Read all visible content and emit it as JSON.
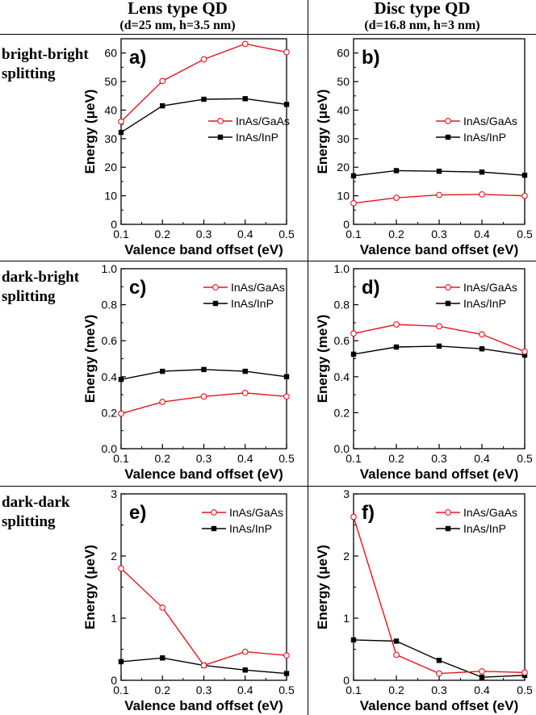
{
  "columns": [
    {
      "title": "Lens type QD",
      "subtitle": "(d=25 nm, h=3.5 nm)"
    },
    {
      "title": "Disc type QD",
      "subtitle": "(d=16.8 nm, h=3 nm)"
    }
  ],
  "rows": [
    {
      "label_line1": "bright-bright",
      "label_line2": "splitting"
    },
    {
      "label_line1": "dark-bright",
      "label_line2": "splitting"
    },
    {
      "label_line1": "dark-dark",
      "label_line2": "splitting"
    }
  ],
  "colors": {
    "InAs/GaAs": "#e8141b",
    "InAs/InP": "#000000"
  },
  "chart_data": [
    {
      "type": "line",
      "panel": "a)",
      "xlabel": "Valence band offset (eV)",
      "ylabel": "Energy (μeV)",
      "x": [
        0.1,
        0.2,
        0.3,
        0.4,
        0.5
      ],
      "xlim": [
        0.1,
        0.5
      ],
      "ylim": [
        0,
        65
      ],
      "yticks": [
        0,
        10,
        20,
        30,
        40,
        50,
        60
      ],
      "ytick_labels": [
        "0",
        "10",
        "20",
        "30",
        "40",
        "50",
        "60"
      ],
      "xtick_labels": [
        "0.1",
        "0.2",
        "0.3",
        "0.4",
        "0.5"
      ],
      "series": [
        {
          "name": "InAs/GaAs",
          "values": [
            36,
            50.2,
            57.8,
            63.2,
            60.3
          ],
          "marker": "open-circle"
        },
        {
          "name": "InAs/InP",
          "values": [
            32.2,
            41.5,
            43.8,
            44,
            42
          ],
          "marker": "filled-square"
        }
      ]
    },
    {
      "type": "line",
      "panel": "b)",
      "xlabel": "Valence band offset (eV)",
      "ylabel": "Energy (μeV)",
      "x": [
        0.1,
        0.2,
        0.3,
        0.4,
        0.5
      ],
      "xlim": [
        0.1,
        0.5
      ],
      "ylim": [
        0,
        65
      ],
      "yticks": [
        0,
        10,
        20,
        30,
        40,
        50,
        60
      ],
      "ytick_labels": [
        "0",
        "10",
        "20",
        "30",
        "40",
        "50",
        "60"
      ],
      "xtick_labels": [
        "0.1",
        "0.2",
        "0.3",
        "0.4",
        "0.5"
      ],
      "series": [
        {
          "name": "InAs/GaAs",
          "values": [
            7.4,
            9.3,
            10.3,
            10.5,
            10
          ],
          "marker": "open-circle"
        },
        {
          "name": "InAs/InP",
          "values": [
            17,
            18.8,
            18.6,
            18.3,
            17.2
          ],
          "marker": "filled-square"
        }
      ]
    },
    {
      "type": "line",
      "panel": "c)",
      "xlabel": "Valence band offset (eV)",
      "ylabel": "Energy (meV)",
      "x": [
        0.1,
        0.2,
        0.3,
        0.4,
        0.5
      ],
      "xlim": [
        0.1,
        0.5
      ],
      "ylim": [
        0,
        1.0
      ],
      "yticks": [
        0,
        0.2,
        0.4,
        0.6,
        0.8,
        1.0
      ],
      "ytick_labels": [
        "0.0",
        "0.2",
        "0.4",
        "0.6",
        "0.8",
        "1.0"
      ],
      "xtick_labels": [
        "0.1",
        "0.2",
        "0.3",
        "0.4",
        "0.5"
      ],
      "series": [
        {
          "name": "InAs/GaAs",
          "values": [
            0.195,
            0.26,
            0.29,
            0.31,
            0.29
          ],
          "marker": "open-circle"
        },
        {
          "name": "InAs/InP",
          "values": [
            0.385,
            0.43,
            0.44,
            0.43,
            0.4
          ],
          "marker": "filled-square"
        }
      ]
    },
    {
      "type": "line",
      "panel": "d)",
      "xlabel": "Valence band offset (eV)",
      "ylabel": "Energy (meV)",
      "x": [
        0.1,
        0.2,
        0.3,
        0.4,
        0.5
      ],
      "xlim": [
        0.1,
        0.5
      ],
      "ylim": [
        0,
        1.0
      ],
      "yticks": [
        0,
        0.2,
        0.4,
        0.6,
        0.8,
        1.0
      ],
      "ytick_labels": [
        "0.0",
        "0.2",
        "0.4",
        "0.6",
        "0.8",
        "1.0"
      ],
      "xtick_labels": [
        "0.1",
        "0.2",
        "0.3",
        "0.4",
        "0.5"
      ],
      "series": [
        {
          "name": "InAs/GaAs",
          "values": [
            0.64,
            0.69,
            0.68,
            0.635,
            0.54
          ],
          "marker": "open-circle"
        },
        {
          "name": "InAs/InP",
          "values": [
            0.525,
            0.565,
            0.57,
            0.555,
            0.52
          ],
          "marker": "filled-square"
        }
      ]
    },
    {
      "type": "line",
      "panel": "e)",
      "xlabel": "Valence band offset (eV)",
      "ylabel": "Energy (μeV)",
      "x": [
        0.1,
        0.2,
        0.3,
        0.4,
        0.5
      ],
      "xlim": [
        0.1,
        0.5
      ],
      "ylim": [
        0,
        3
      ],
      "yticks": [
        0,
        1,
        2,
        3
      ],
      "ytick_labels": [
        "0",
        "1",
        "2",
        "3"
      ],
      "xtick_labels": [
        "0.1",
        "0.2",
        "0.3",
        "0.4",
        "0.5"
      ],
      "series": [
        {
          "name": "InAs/GaAs",
          "values": [
            1.8,
            1.17,
            0.24,
            0.46,
            0.4
          ],
          "marker": "open-circle"
        },
        {
          "name": "InAs/InP",
          "values": [
            0.3,
            0.36,
            0.24,
            0.165,
            0.11
          ],
          "marker": "filled-square"
        }
      ]
    },
    {
      "type": "line",
      "panel": "f)",
      "xlabel": "Valence band offset (eV)",
      "ylabel": "Energy (μeV)",
      "x": [
        0.1,
        0.2,
        0.3,
        0.4,
        0.5
      ],
      "xlim": [
        0.1,
        0.5
      ],
      "ylim": [
        0,
        3
      ],
      "yticks": [
        0,
        1,
        2,
        3
      ],
      "ytick_labels": [
        "0",
        "1",
        "2",
        "3"
      ],
      "xtick_labels": [
        "0.1",
        "0.2",
        "0.3",
        "0.4",
        "0.5"
      ],
      "series": [
        {
          "name": "InAs/GaAs",
          "values": [
            2.63,
            0.41,
            0.11,
            0.145,
            0.125
          ],
          "marker": "open-circle"
        },
        {
          "name": "InAs/InP",
          "values": [
            0.65,
            0.63,
            0.32,
            0.05,
            0.08
          ],
          "marker": "filled-square"
        }
      ]
    }
  ]
}
